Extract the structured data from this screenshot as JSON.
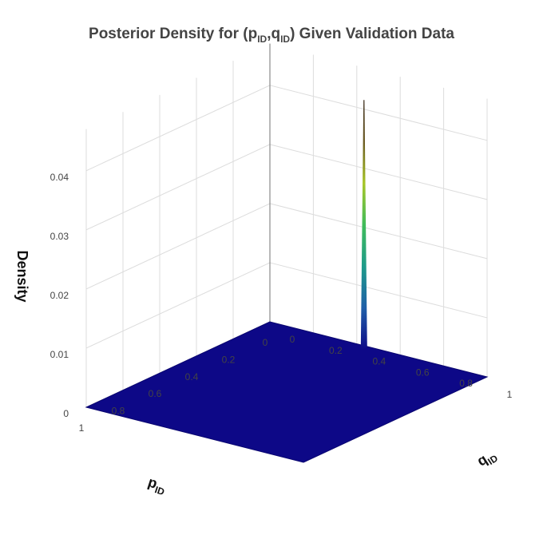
{
  "chart_data": {
    "type": "surface3d",
    "title_parts": {
      "pre": "Posterior Density for (p",
      "sub1": "ID",
      "mid": ",q",
      "sub2": "ID",
      "post": ") Given Validation Data"
    },
    "x_axis": {
      "label_main": "p",
      "label_sub": "ID",
      "ticks": [
        "0",
        "0.2",
        "0.4",
        "0.6",
        "0.8",
        "1"
      ],
      "range": [
        0,
        1
      ]
    },
    "y_axis": {
      "label_main": "q",
      "label_sub": "ID",
      "ticks": [
        "0",
        "0.2",
        "0.4",
        "0.6",
        "0.8",
        "1"
      ],
      "range": [
        0,
        1
      ]
    },
    "z_axis": {
      "label": "Density",
      "ticks": [
        "0",
        "0.01",
        "0.02",
        "0.03",
        "0.04"
      ],
      "range": [
        0,
        0.042
      ]
    },
    "surface": {
      "baseline_density": 0,
      "peak": {
        "p": 0.02,
        "q": 0.45,
        "density": 0.042
      }
    },
    "colorscale": [
      "#0d0887",
      "#1f5fa8",
      "#1e9b8a",
      "#3fbc5a",
      "#a8c628",
      "#6b5a22",
      "#3a2a1a"
    ],
    "grid": true
  }
}
